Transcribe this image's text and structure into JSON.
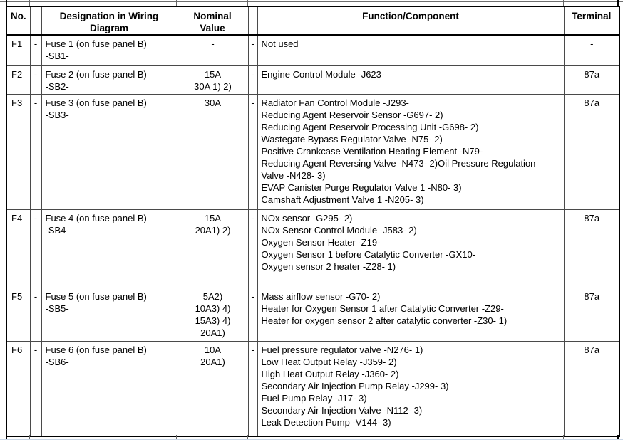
{
  "header": {
    "no": "No.",
    "sep1": "",
    "designation": "Designation in Wiring\nDiagram",
    "nominal": "Nominal\nValue",
    "sep2": "",
    "function": "Function/Component",
    "terminal": "Terminal"
  },
  "rows": [
    {
      "no": "F1",
      "sep1": "-",
      "designation": [
        "Fuse 1 (on fuse panel B)",
        "-SB1-"
      ],
      "nominal": [
        "-"
      ],
      "sep2": "-",
      "functions": [
        "Not used"
      ],
      "terminal": "-"
    },
    {
      "no": "F2",
      "sep1": "-",
      "designation": [
        "Fuse 2 (on fuse panel B)",
        "-SB2-"
      ],
      "nominal": [
        "15A",
        "30A 1) 2)"
      ],
      "sep2": "-",
      "functions": [
        "Engine Control Module -J623-"
      ],
      "terminal": "87a"
    },
    {
      "no": "F3",
      "sep1": "-",
      "designation": [
        "Fuse 3 (on fuse panel B)",
        "-SB3-"
      ],
      "nominal": [
        "30A"
      ],
      "sep2": "-",
      "functions": [
        "Radiator Fan Control Module -J293-",
        "Reducing Agent Reservoir Sensor -G697- 2)",
        "Reducing Agent Reservoir Processing Unit -G698- 2)",
        "Wastegate Bypass Regulator Valve -N75- 2)",
        "Positive Crankcase Ventilation Heating Element -N79-",
        "Reducing Agent Reversing Valve -N473- 2)Oil Pressure Regulation",
        "Valve -N428- 3)",
        "EVAP Canister Purge Regulator Valve 1 -N80- 3)",
        "Camshaft Adjustment Valve 1 -N205- 3)"
      ],
      "terminal": "87a"
    },
    {
      "no": "F4",
      "sep1": "-",
      "designation": [
        "Fuse 4 (on fuse panel B)",
        "-SB4-"
      ],
      "nominal": [
        "15A",
        "20A1) 2)"
      ],
      "sep2": "-",
      "functions": [
        "NOx sensor -G295- 2)",
        "NOx Sensor Control Module -J583- 2)",
        "Oxygen Sensor Heater -Z19-",
        "Oxygen Sensor 1 before Catalytic Converter -GX10-",
        "Oxygen sensor 2 heater -Z28- 1)"
      ],
      "terminal": "87a"
    },
    {
      "no": "F5",
      "sep1": "-",
      "designation": [
        "Fuse 5 (on fuse panel B)",
        "-SB5-"
      ],
      "nominal": [
        "5A2)",
        "10A3) 4)",
        "15A3) 4)",
        "20A1)"
      ],
      "sep2": "-",
      "functions": [
        "Mass airflow sensor -G70- 2)",
        "Heater for Oxygen Sensor 1 after Catalytic Converter -Z29-",
        "Heater for oxygen sensor 2 after catalytic converter -Z30- 1)"
      ],
      "terminal": "87a"
    },
    {
      "no": "F6",
      "sep1": "-",
      "designation": [
        "Fuse 6 (on fuse panel B)",
        "-SB6-"
      ],
      "nominal": [
        "10A",
        "20A1)"
      ],
      "sep2": "-",
      "functions": [
        "Fuel pressure regulator valve -N276- 1)",
        "Low Heat Output Relay -J359- 2)",
        "High Heat Output Relay -J360- 2)",
        "Secondary Air Injection Pump Relay -J299- 3)",
        "Fuel Pump Relay -J17- 3)",
        "Secondary Air Injection Valve -N112- 3)",
        "Leak Detection Pump -V144- 3)"
      ],
      "terminal": "87a"
    }
  ],
  "colors": {
    "border_dark": "#000000",
    "grid_line": "#4a4a4a",
    "bottom_hairline_blue": "#c9d6e6"
  }
}
